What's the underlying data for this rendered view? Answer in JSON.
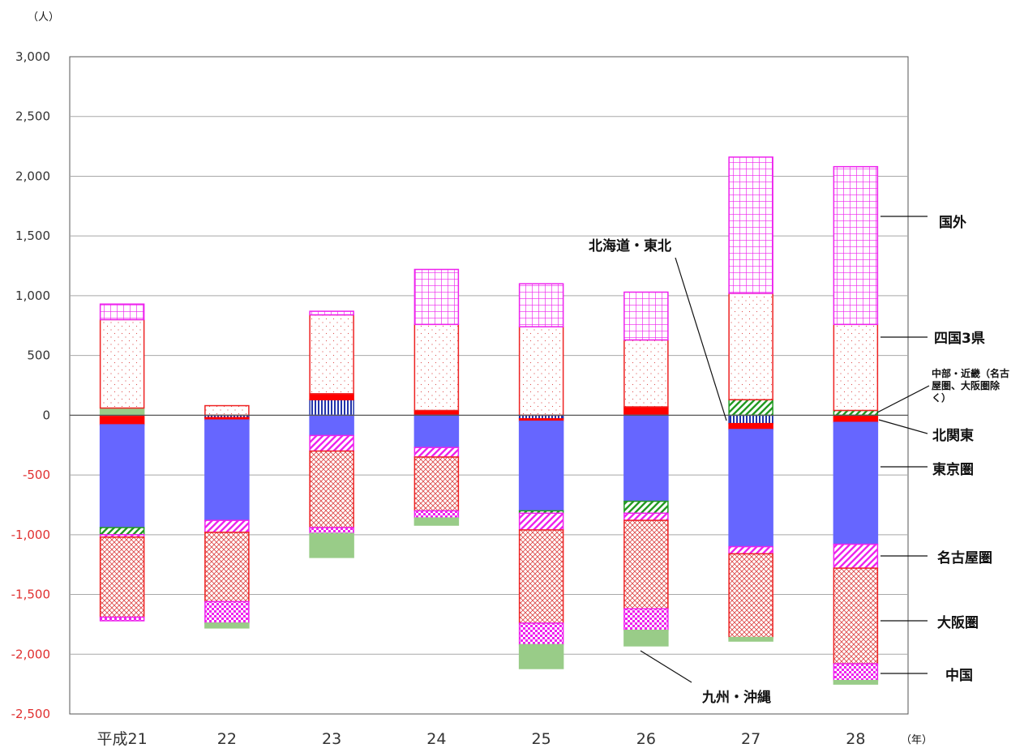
{
  "chart_data": {
    "type": "bar",
    "stacked": true,
    "y_unit": "（人）",
    "x_unit": "（年）",
    "categories": [
      "平成21",
      "22",
      "23",
      "24",
      "25",
      "26",
      "27",
      "28"
    ],
    "ylim": [
      -2500,
      3000
    ],
    "yticks": [
      3000,
      2500,
      2000,
      1500,
      1000,
      500,
      0,
      -500,
      -1000,
      -1500,
      -2000,
      -2500
    ],
    "ytick_labels": [
      "3,000",
      "2,500",
      "2,000",
      "1,500",
      "1,000",
      "500",
      "0",
      "-500",
      "-1,000",
      "-1,500",
      "-2,000",
      "-2,500"
    ],
    "grid": true,
    "legend_position": "right",
    "series": [
      {
        "name": "北海道・東北",
        "color": "#2233aa",
        "pattern": "vlines",
        "values": [
          0,
          -20,
          130,
          0,
          -30,
          0,
          -70,
          0
        ]
      },
      {
        "name": "北関東",
        "color": "#ff0000",
        "pattern": "solid",
        "values": [
          -80,
          -20,
          50,
          40,
          -20,
          70,
          -50,
          -60
        ]
      },
      {
        "name": "東京圏",
        "color": "#6666ff",
        "pattern": "solid",
        "values": [
          -860,
          -840,
          -170,
          -270,
          -750,
          -720,
          -980,
          -1020
        ]
      },
      {
        "name": "中部・近畿（名古屋圏、大阪圏除く）",
        "color": "#229922",
        "pattern": "diag",
        "values": [
          -60,
          0,
          0,
          0,
          -20,
          -100,
          130,
          40
        ]
      },
      {
        "name": "名古屋圏",
        "color": "#ee22ee",
        "pattern": "diag",
        "values": [
          -20,
          -100,
          -130,
          -80,
          -140,
          -60,
          -60,
          -200
        ]
      },
      {
        "name": "大阪圏",
        "color": "#ee2222",
        "pattern": "crosshatch",
        "values": [
          -670,
          -580,
          -640,
          -450,
          -780,
          -740,
          -700,
          -800
        ]
      },
      {
        "name": "中国",
        "color": "#ee22ee",
        "pattern": "checker",
        "values": [
          -30,
          -180,
          -50,
          -60,
          -180,
          -180,
          0,
          -140
        ]
      },
      {
        "name": "九州・沖縄",
        "color": "#99cc88",
        "pattern": "solid",
        "values": [
          60,
          -40,
          -200,
          -60,
          -200,
          -130,
          -30,
          -30
        ]
      },
      {
        "name": "四国3県",
        "color": "#ee2222",
        "pattern": "dots",
        "values": [
          740,
          80,
          660,
          720,
          740,
          560,
          890,
          720
        ]
      },
      {
        "name": "国外",
        "color": "#ee22ee",
        "pattern": "grid",
        "values": [
          130,
          0,
          30,
          460,
          360,
          400,
          1140,
          1320
        ]
      }
    ],
    "annotations": [
      "国外",
      "四国3県",
      "中部・近畿（名古屋圏、大阪圏除く）",
      "北関東",
      "東京圏",
      "名古屋圏",
      "大阪圏",
      "中国",
      "北海道・東北",
      "九州・沖縄"
    ]
  },
  "legend": {
    "kokugai": "国外",
    "shikoku": "四国3県",
    "chubu_line1": "中部・近畿（名古",
    "chubu_line2": "屋圏、大阪圏除",
    "chubu_line3": "く）",
    "kitakanto": "北関東",
    "tokyo": "東京圏",
    "nagoya": "名古屋圏",
    "osaka": "大阪圏",
    "chugoku": "中国",
    "hokkaido": "北海道・東北",
    "kyushu": "九州・沖縄"
  }
}
